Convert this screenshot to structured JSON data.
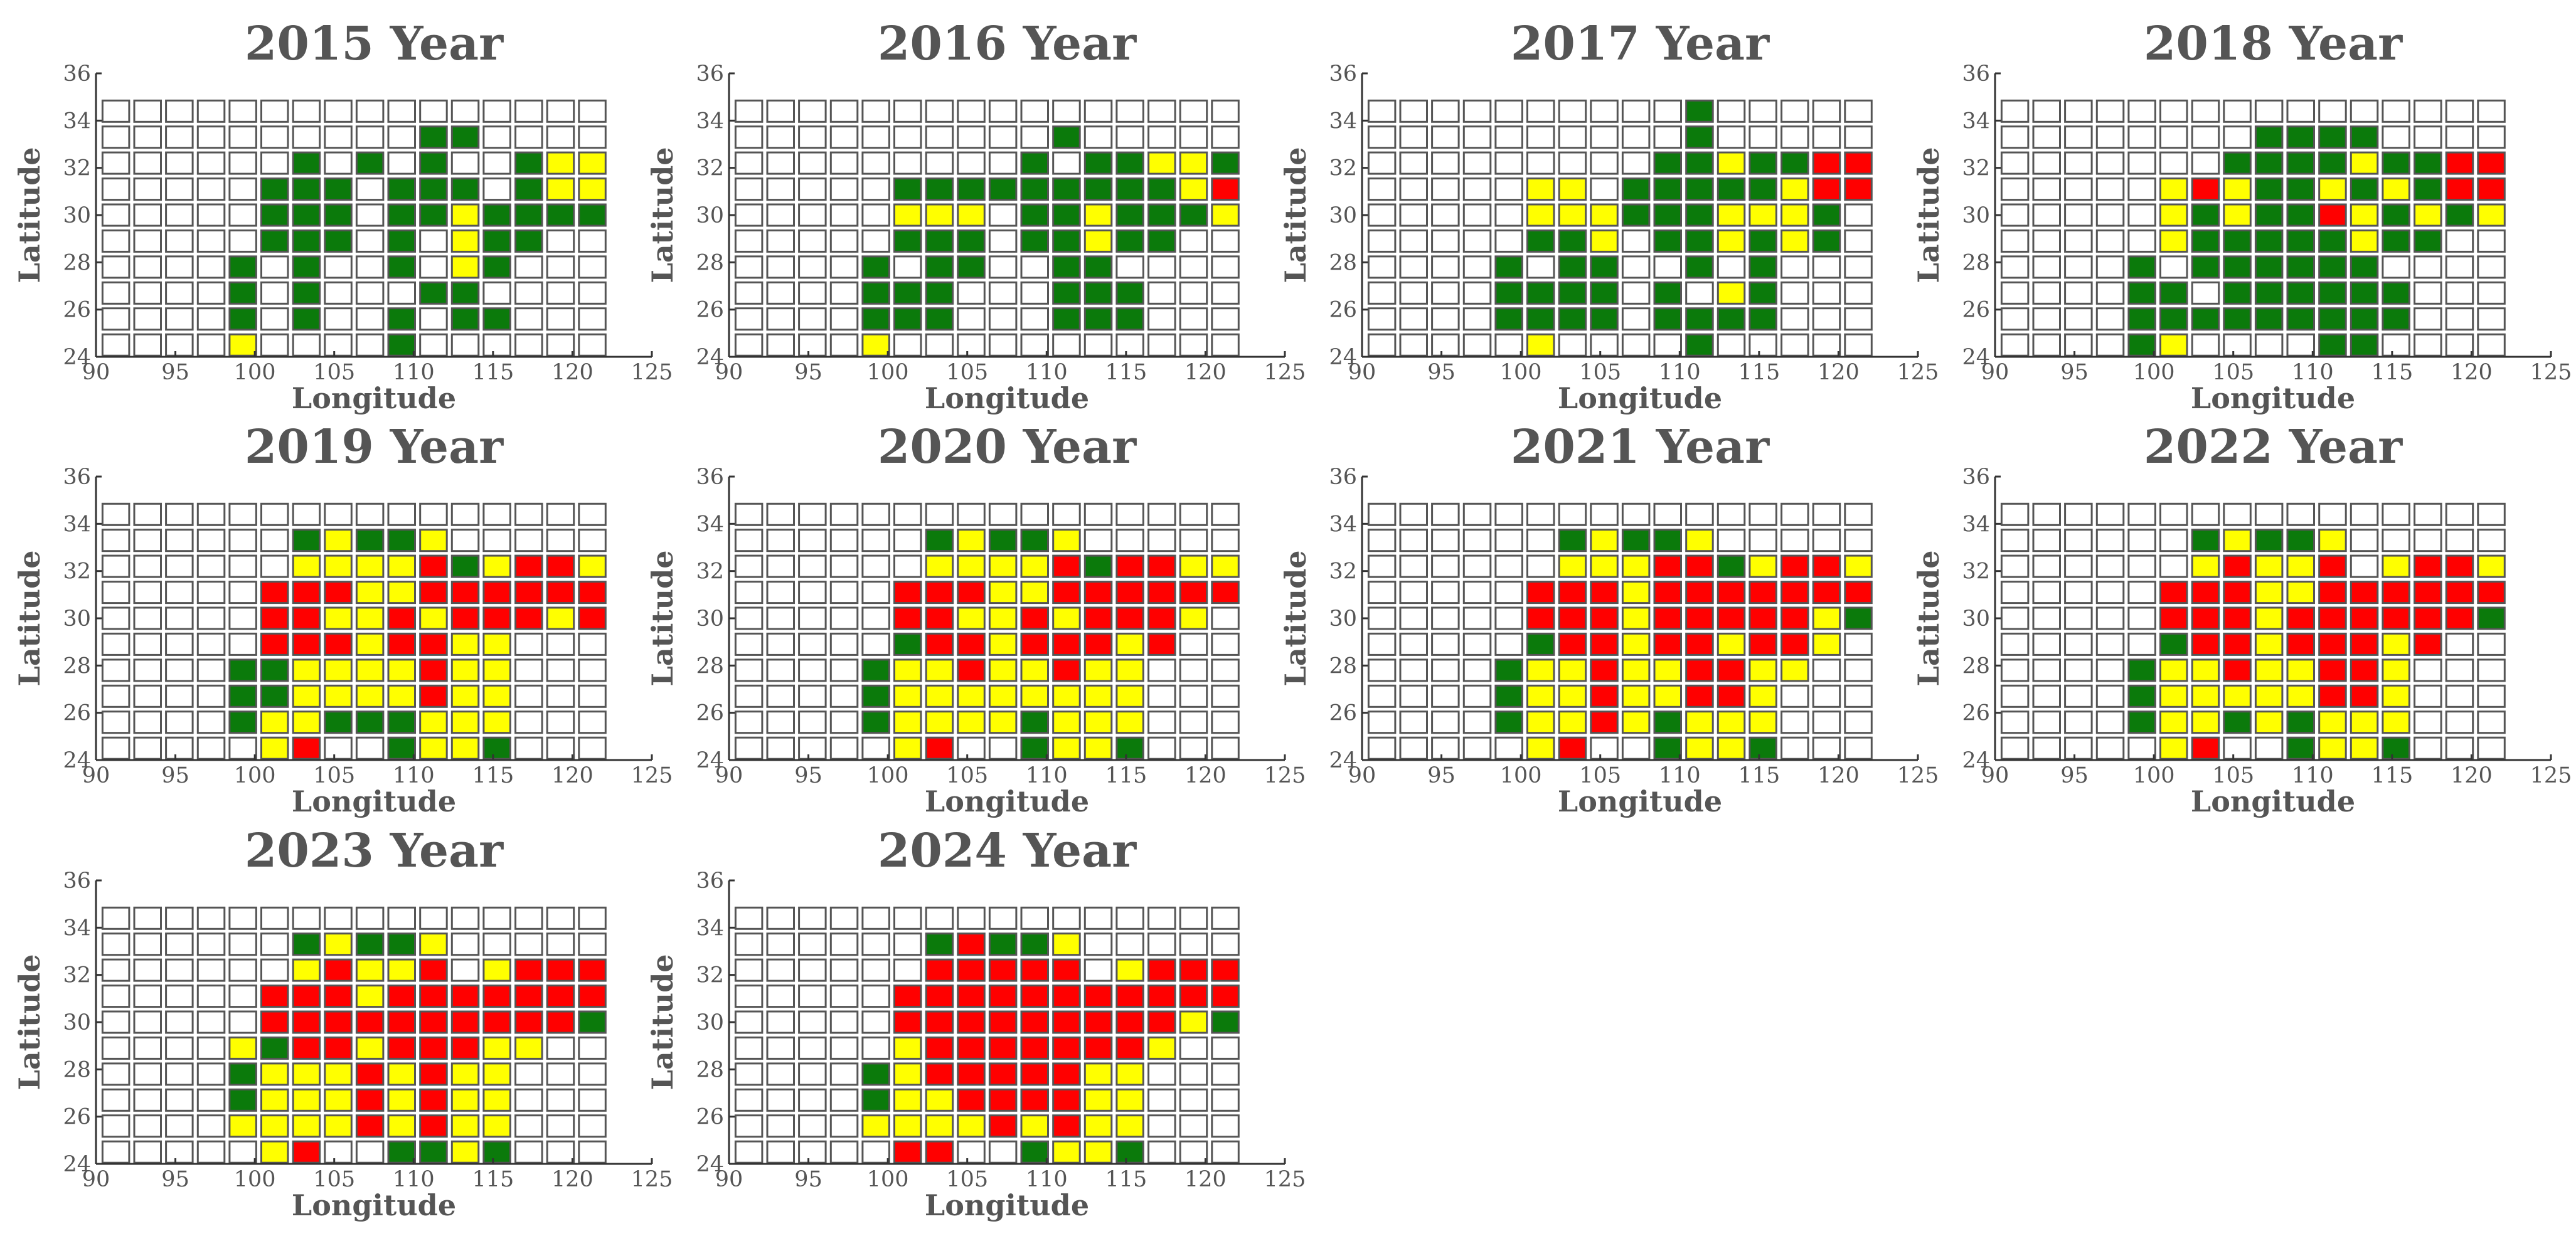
{
  "chart_data": {
    "type": "heatmap",
    "x_label": "Longitude",
    "y_label": "Latitude",
    "x_ticks": [
      90,
      95,
      100,
      105,
      110,
      115,
      120,
      125
    ],
    "y_ticks": [
      24,
      26,
      28,
      30,
      32,
      34,
      36
    ],
    "xlim": [
      90,
      125
    ],
    "ylim": [
      24,
      36
    ],
    "grid": {
      "lon_min": 91.25,
      "lon_step": 2.0,
      "lon_count": 16,
      "lat_min": 24.5,
      "lat_step": 1.1,
      "lat_count": 10
    },
    "cell_value_legend": {
      "0": "none",
      "1": "green",
      "2": "yellow",
      "3": "red"
    },
    "colors": {
      "0": "#ffffff",
      "1": "#0b7a0b",
      "2": "#ffff00",
      "3": "#ff0000"
    },
    "row_order": "rows listed from top (northernmost) to bottom (southernmost)",
    "panels": [
      {
        "title": "2015 Year",
        "grid": [
          "0000000000000000",
          "0000000000110000",
          "0000001010100122",
          "0000011101110122",
          "0000011101121111",
          "0000011101021100",
          "0000101001021000",
          "0000101000110000",
          "0000101001011000",
          "0000200001000000"
        ]
      },
      {
        "title": "2016 Year",
        "grid": [
          "0000000000000000",
          "0000000000100000",
          "0000000001011221",
          "0000011111111123",
          "0000022201121112",
          "0000011101121100",
          "0000101100110000",
          "0000111000111000",
          "0000111000111000",
          "0000200000000000"
        ]
      },
      {
        "title": "2017 Year",
        "grid": [
          "0000000000100000",
          "0000000000100000",
          "0000000001121133",
          "0000022011111233",
          "0000022211122210",
          "0000011201121210",
          "0000101100101000",
          "0000111101021000",
          "0000111101111000",
          "0000020000100000"
        ]
      },
      {
        "title": "2018 Year",
        "grid": [
          "0000000000000000",
          "0000000011110000",
          "0000000111121133",
          "0000023211212133",
          "0000021211321212",
          "0000021111121100",
          "0000101111110000",
          "0000110111111000",
          "0000111111111000",
          "0000120000110000"
        ]
      },
      {
        "title": "2019 Year",
        "grid": [
          "0000000000000000",
          "0000001211200000",
          "0000002222312332",
          "0000033322333333",
          "0000033223233323",
          "0000033323322000",
          "0000112222322000",
          "0000112222322000",
          "0000122111222000",
          "0000023001221000"
        ]
      },
      {
        "title": "2020 Year",
        "grid": [
          "0000000000000000",
          "0000001211200000",
          "0000002222313322",
          "0000033322333333",
          "0000033223233320",
          "0000013323332300",
          "0000122322322000",
          "0000122222222000",
          "0000122221222000",
          "0000023001221000"
        ]
      },
      {
        "title": "2021 Year",
        "grid": [
          "0000000000000000",
          "0000001211200000",
          "0000002223312332",
          "0000033323333333",
          "0000033323333321",
          "0000013323323320",
          "0000122322332200",
          "0000122322332000",
          "0000122321222000",
          "0000023001221000"
        ]
      },
      {
        "title": "2022 Year",
        "grid": [
          "0000000000000000",
          "0000001211200000",
          "0000002322302332",
          "0000033322333333",
          "0000033323333331",
          "0000013323332300",
          "0000122322332000",
          "0000122222332000",
          "0000122121222000",
          "0000023001221000"
        ]
      },
      {
        "title": "2023 Year",
        "grid": [
          "0000000000000000",
          "0000001211200000",
          "0000002322302333",
          "0000033323333333",
          "0000033333333331",
          "0000213323332200",
          "0000122232322000",
          "0000122232322000",
          "0000222232322000",
          "0000023001121000"
        ]
      },
      {
        "title": "2024 Year",
        "grid": [
          "0000000000000000",
          "0000001311200000",
          "0000003333302333",
          "0000033333333333",
          "0000033333333321",
          "0000023333333200",
          "0000123333322000",
          "0000122333322000",
          "0000222232322000",
          "0000033001221000"
        ]
      }
    ]
  }
}
